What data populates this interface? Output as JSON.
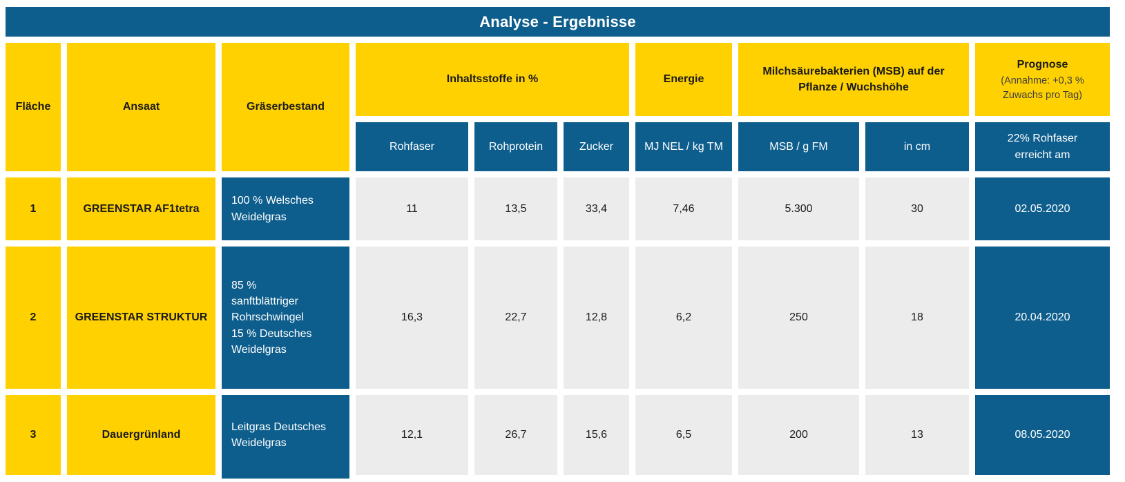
{
  "title": "Analyse - Ergebnisse",
  "colors": {
    "header_blue": "#0E5E8D",
    "accent_yellow": "#FFD100",
    "data_gray": "#ECECEC",
    "background": "#ffffff"
  },
  "table": {
    "fixed_columns": [
      {
        "key": "flaeche",
        "label": "Fläche"
      },
      {
        "key": "ansaat",
        "label": "Ansaat"
      },
      {
        "key": "graeserbestand",
        "label": "Gräserbestand"
      }
    ],
    "groups": [
      {
        "label": "Inhaltsstoffe in %",
        "subcols": [
          "Rohfaser",
          "Rohprotein",
          "Zucker"
        ]
      },
      {
        "label": "Energie",
        "subcols": [
          "MJ NEL / kg TM"
        ]
      },
      {
        "label": "Milchsäurebakterien (MSB) auf der\nPflanze / Wuchshöhe",
        "subcols": [
          "MSB / g FM",
          "in cm"
        ]
      },
      {
        "label": "Prognose",
        "sublabel": "(Annahme: +0,3 %\nZuwachs pro Tag)",
        "subcols": [
          "22% Rohfaser\nerreicht am"
        ]
      }
    ],
    "rows": [
      {
        "flaeche": "1",
        "ansaat": "GREENSTAR AF1tetra",
        "graeserbestand": "100 % Welsches\nWeidelgras",
        "rohfaser": "11",
        "rohprotein": "13,5",
        "zucker": "33,4",
        "energie": "7,46",
        "msb": "5.300",
        "wuchshoehe": "30",
        "prognose": "02.05.2020"
      },
      {
        "flaeche": "2",
        "ansaat": "GREENSTAR STRUKTUR",
        "graeserbestand": "85 %\nsanftblättriger\nRohrschwingel\n15 % Deutsches\nWeidelgras",
        "rohfaser": "16,3",
        "rohprotein": "22,7",
        "zucker": "12,8",
        "energie": "6,2",
        "msb": "250",
        "wuchshoehe": "18",
        "prognose": "20.04.2020"
      },
      {
        "flaeche": "3",
        "ansaat": "Dauergrünland",
        "graeserbestand": "Leitgras Deutsches\nWeidelgras",
        "rohfaser": "12,1",
        "rohprotein": "26,7",
        "zucker": "15,6",
        "energie": "6,5",
        "msb": "200",
        "wuchshoehe": "13",
        "prognose": "08.05.2020"
      }
    ]
  },
  "chart_data": {
    "type": "table",
    "title": "Analyse - Ergebnisse",
    "columns": [
      "Fläche",
      "Ansaat",
      "Gräserbestand",
      "Rohfaser (%)",
      "Rohprotein (%)",
      "Zucker (%)",
      "MJ NEL / kg TM",
      "MSB / g FM",
      "Wuchshöhe in cm",
      "22% Rohfaser erreicht am"
    ],
    "rows": [
      [
        "1",
        "GREENSTAR AF1tetra",
        "100 % Welsches Weidelgras",
        "11",
        "13,5",
        "33,4",
        "7,46",
        "5.300",
        "30",
        "02.05.2020"
      ],
      [
        "2",
        "GREENSTAR STRUKTUR",
        "85 % sanftblättriger Rohrschwingel 15 % Deutsches Weidelgras",
        "16,3",
        "22,7",
        "12,8",
        "6,2",
        "250",
        "18",
        "20.04.2020"
      ],
      [
        "3",
        "Dauergrünland",
        "Leitgras Deutsches Weidelgras",
        "12,1",
        "26,7",
        "15,6",
        "6,5",
        "200",
        "13",
        "08.05.2020"
      ]
    ]
  }
}
